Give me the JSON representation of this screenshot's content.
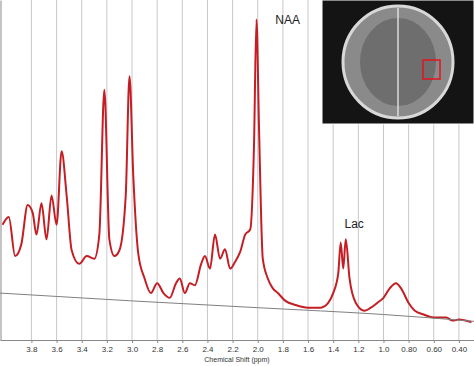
{
  "chart_data": {
    "type": "line",
    "x_label": "Chemical Shift (ppm)",
    "xlim": [
      4.05,
      0.28
    ],
    "ylim": [
      0,
      100
    ],
    "xticks": [
      3.8,
      3.6,
      3.4,
      3.2,
      {
        "value": 3.0,
        "label": "3.0"
      },
      2.8,
      2.6,
      2.4,
      2.2,
      {
        "value": 2.0,
        "label": "2.0"
      },
      1.8,
      1.6,
      1.4,
      1.2,
      {
        "value": 1.0,
        "label": "1.0"
      },
      {
        "value": 0.8,
        "label": "0.80"
      },
      {
        "value": 0.6,
        "label": "0.60"
      },
      {
        "value": 0.4,
        "label": "0.40"
      }
    ],
    "grid": true,
    "tick_labels": "x",
    "series": [
      {
        "color": "#c41e24",
        "x": [
          4.03,
          3.98,
          3.93,
          3.88,
          3.83,
          3.79,
          3.76,
          3.72,
          3.68,
          3.64,
          3.6,
          3.56,
          3.52,
          3.48,
          3.42,
          3.36,
          3.3,
          3.26,
          3.22,
          3.18,
          3.14,
          3.1,
          3.05,
          3.02,
          2.99,
          2.95,
          2.9,
          2.85,
          2.8,
          2.75,
          2.7,
          2.65,
          2.62,
          2.58,
          2.54,
          2.5,
          2.45,
          2.42,
          2.38,
          2.34,
          2.3,
          2.26,
          2.22,
          2.18,
          2.14,
          2.1,
          2.06,
          2.03,
          2.01,
          1.99,
          1.96,
          1.92,
          1.88,
          1.84,
          1.78,
          1.7,
          1.6,
          1.5,
          1.44,
          1.4,
          1.36,
          1.34,
          1.32,
          1.3,
          1.27,
          1.22,
          1.15,
          1.1,
          1.05,
          1.0,
          0.95,
          0.9,
          0.86,
          0.8,
          0.75,
          0.68,
          0.6,
          0.5,
          0.45,
          0.4,
          0.3
        ],
        "values": [
          33.9,
          36.2,
          24.7,
          28.2,
          39.7,
          37.4,
          31.0,
          40.2,
          29.6,
          42.5,
          33.9,
          55.5,
          42.5,
          26.4,
          22.4,
          24.7,
          23.9,
          31.0,
          73.6,
          29.6,
          24.7,
          26.4,
          42.5,
          77.6,
          48.3,
          25.3,
          18.1,
          13.8,
          16.7,
          13.8,
          12.4,
          16.7,
          18.1,
          13.8,
          16.7,
          16.1,
          22.4,
          24.7,
          21.0,
          31.0,
          23.9,
          26.7,
          21.0,
          23.0,
          25.9,
          31.0,
          32.5,
          56.9,
          94.3,
          62.6,
          23.9,
          18.1,
          15.2,
          13.8,
          11.5,
          10.3,
          9.5,
          9.5,
          10.9,
          13.8,
          19.5,
          28.7,
          21.0,
          29.6,
          18.1,
          10.9,
          8.6,
          9.5,
          10.9,
          12.4,
          15.2,
          16.7,
          15.2,
          10.9,
          8.6,
          7.5,
          6.6,
          6.6,
          5.7,
          6.0,
          5.2
        ]
      },
      {
        "color": "#808080",
        "x": [
          4.05,
          3.0,
          2.0,
          1.0,
          0.28
        ],
        "values": [
          13.8,
          11.5,
          9.5,
          7.5,
          5.5
        ]
      }
    ],
    "annotations": [
      {
        "text": "NAA",
        "x": 1.86,
        "y": 93
      },
      {
        "text": "Lac",
        "x": 1.31,
        "y": 33
      }
    ]
  }
}
